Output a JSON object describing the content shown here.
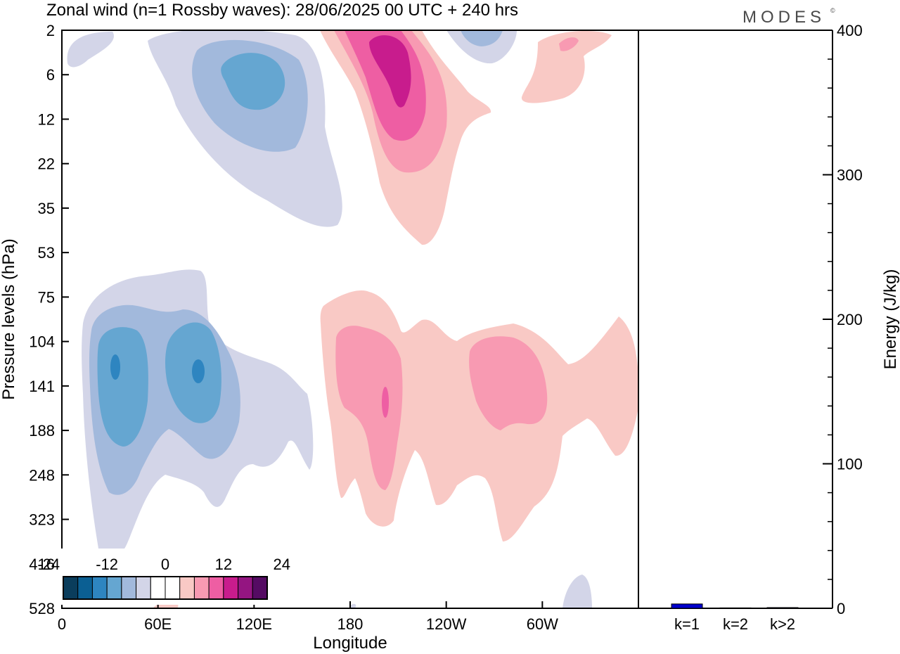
{
  "title": "Zonal wind (n=1 Rossby waves):  28/06/2025  00 UTC  + 240 hrs",
  "brand": "MODES",
  "brand_mark": "©",
  "colors": {
    "contour_levels": [
      "#0a3d5c",
      "#0b5f93",
      "#2e85c0",
      "#65a6d1",
      "#a2b9dc",
      "#d3d5e8",
      "#ffffff",
      "#ffffff",
      "#f9c9c5",
      "#f89ab2",
      "#ee5ea3",
      "#c81c8d",
      "#941581",
      "#550b63"
    ],
    "bar_fill": "#0000cc"
  },
  "chart_data": [
    {
      "id": "hovmoller",
      "type": "contour",
      "xlabel": "Longitude",
      "ylabel": "Pressure levels (hPa)",
      "x_ticks": [
        "0",
        "60E",
        "120E",
        "180",
        "120W",
        "60W"
      ],
      "x_tick_values": [
        0,
        60,
        120,
        180,
        240,
        300
      ],
      "xlim": [
        0,
        360
      ],
      "y_ticks": [
        "2",
        "6",
        "12",
        "22",
        "35",
        "53",
        "75",
        "104",
        "141",
        "188",
        "248",
        "323",
        "416",
        "528"
      ],
      "y_scale": "categorical-levels, top to bottom",
      "legend": {
        "labels": [
          "-24",
          "-12",
          "0",
          "12",
          "24"
        ],
        "label_values": [
          -24,
          -12,
          0,
          12,
          24
        ],
        "placement": "bottom-left"
      },
      "features": [
        {
          "kind": "easterly",
          "peak": -8,
          "lon": 125,
          "level": 7
        },
        {
          "kind": "westerly",
          "peak": 14,
          "lon": 210,
          "level": 5
        },
        {
          "kind": "easterly",
          "peak": -5,
          "lon": 255,
          "level": 2
        },
        {
          "kind": "westerly",
          "peak": 7,
          "lon": 322,
          "level": 4
        },
        {
          "kind": "easterly",
          "peak": -11,
          "lon": 32,
          "level": 120
        },
        {
          "kind": "easterly",
          "peak": -11,
          "lon": 83,
          "level": 120
        },
        {
          "kind": "westerly",
          "peak": 9,
          "lon": 200,
          "level": 140
        },
        {
          "kind": "westerly",
          "peak": 5,
          "lon": 278,
          "level": 140
        }
      ]
    },
    {
      "id": "energy",
      "type": "bar",
      "categories": [
        "k=1",
        "k=2",
        "k>2"
      ],
      "values": [
        3,
        0.3,
        0.5
      ],
      "ylabel": "Energy (J/kg)",
      "ylim": [
        0,
        400
      ],
      "y_ticks": [
        "0",
        "100",
        "200",
        "300",
        "400"
      ],
      "y_tick_values": [
        0,
        100,
        200,
        300,
        400
      ]
    }
  ]
}
